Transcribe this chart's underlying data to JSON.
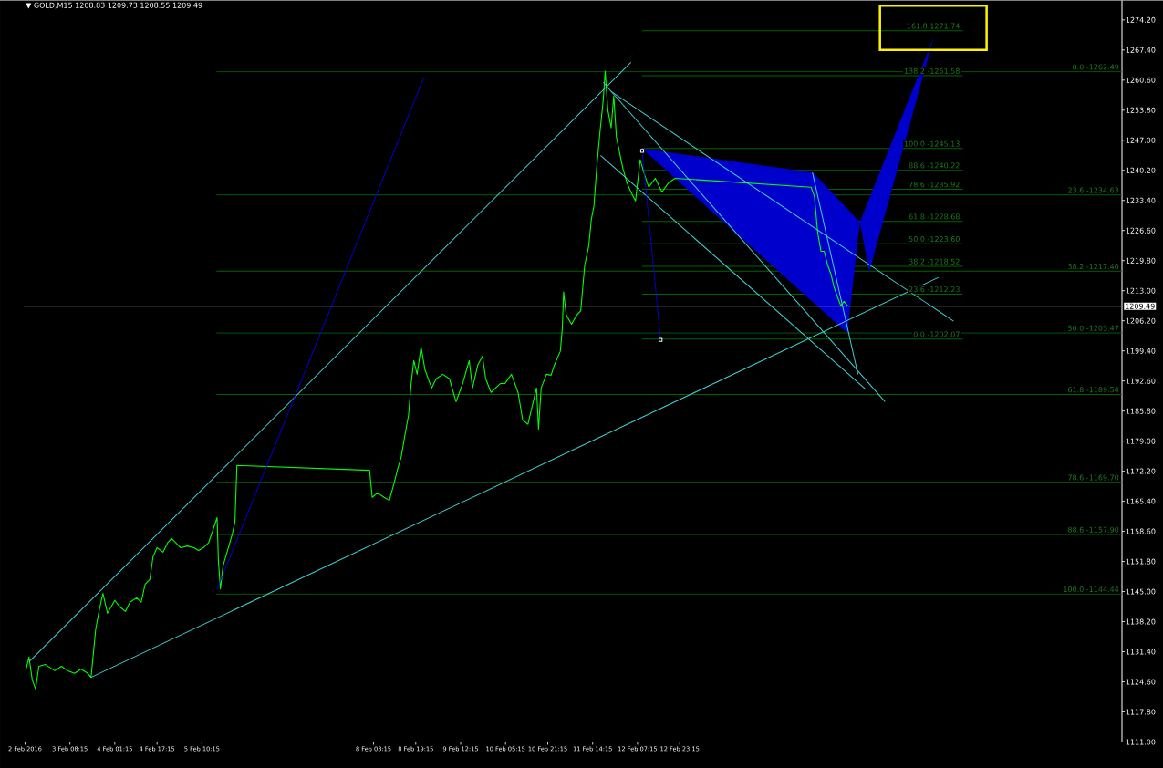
{
  "chart_data": {
    "type": "line",
    "title": "▼ GOLD,M15  1208.83 1209.73 1208.55 1209.49",
    "xlim": [
      "2016-02-02T14:45",
      "2016-02-19T22:45"
    ],
    "xticks": [
      {
        "value": "2016-02-02T15:15",
        "label": "2 Feb 2016"
      },
      {
        "value": "2016-02-03T08:15",
        "label": "3 Feb 08:15"
      },
      {
        "value": "2016-02-04T01:15",
        "label": "4 Feb 01:15"
      },
      {
        "value": "2016-02-04T17:15",
        "label": "4 Feb 17:15"
      },
      {
        "value": "2016-02-05T10:15",
        "label": "5 Feb 10:15"
      },
      {
        "value": "2016-02-08T03:15",
        "label": "8 Feb 03:15"
      },
      {
        "value": "2016-02-08T19:15",
        "label": "8 Feb 19:15"
      },
      {
        "value": "2016-02-09T12:15",
        "label": "9 Feb 12:15"
      },
      {
        "value": "2016-02-10T05:15",
        "label": "10 Feb 05:15"
      },
      {
        "value": "2016-02-10T21:15",
        "label": "10 Feb 21:15"
      },
      {
        "value": "2016-02-11T14:15",
        "label": "11 Feb 14:15"
      },
      {
        "value": "2016-02-12T07:15",
        "label": "12 Feb 07:15"
      },
      {
        "value": "2016-02-12T23:15",
        "label": "12 Feb 23:15"
      }
    ],
    "ylim": [
      1111,
      1278.6
    ],
    "yticks": [
      {
        "value": 1111.0,
        "label": "1111.00"
      },
      {
        "value": 1117.8,
        "label": "1117.80"
      },
      {
        "value": 1124.6,
        "label": "1124.60"
      },
      {
        "value": 1131.4,
        "label": "1131.40"
      },
      {
        "value": 1138.2,
        "label": "1138.20"
      },
      {
        "value": 1145.0,
        "label": "1145.00"
      },
      {
        "value": 1151.8,
        "label": "1151.80"
      },
      {
        "value": 1158.6,
        "label": "1158.60"
      },
      {
        "value": 1165.4,
        "label": "1165.40"
      },
      {
        "value": 1172.2,
        "label": "1172.20"
      },
      {
        "value": 1179.0,
        "label": "1179.00"
      },
      {
        "value": 1185.8,
        "label": "1185.80"
      },
      {
        "value": 1192.6,
        "label": "1192.60"
      },
      {
        "value": 1199.4,
        "label": "1199.40"
      },
      {
        "value": 1206.2,
        "label": "1206.20"
      },
      {
        "value": 1213.0,
        "label": "1213.00"
      },
      {
        "value": 1219.8,
        "label": "1219.80"
      },
      {
        "value": 1226.6,
        "label": "1226.60"
      },
      {
        "value": 1233.4,
        "label": "1233.40"
      },
      {
        "value": 1240.2,
        "label": "1240.20"
      },
      {
        "value": 1247.0,
        "label": "1247.00"
      },
      {
        "value": 1253.8,
        "label": "1253.80"
      },
      {
        "value": 1260.6,
        "label": "1260.60"
      },
      {
        "value": 1267.4,
        "label": "1267.40"
      },
      {
        "value": 1274.2,
        "label": "1274.20"
      }
    ],
    "series": [
      {
        "name": "0.0 -1262.49",
        "color": "#006400",
        "x": [
          "2016-02-05T15:45",
          "2016-02-19T22:45"
        ],
        "values": [
          1262.49,
          1262.49
        ]
      },
      {
        "name": "23.6 -1234.63",
        "color": "#006400",
        "x": [
          "2016-02-05T15:45",
          "2016-02-19T22:45"
        ],
        "values": [
          1234.63,
          1234.63
        ]
      },
      {
        "name": "38.2 -1217.40",
        "color": "#006400",
        "x": [
          "2016-02-05T15:45",
          "2016-02-19T22:45"
        ],
        "values": [
          1217.4,
          1217.4
        ]
      },
      {
        "name": "50.0 -1203.47",
        "color": "#006400",
        "x": [
          "2016-02-05T15:45",
          "2016-02-19T22:45"
        ],
        "values": [
          1203.47,
          1203.47
        ]
      },
      {
        "name": "61.8 -1189.54",
        "color": "#006400",
        "x": [
          "2016-02-05T15:45",
          "2016-02-19T22:45"
        ],
        "values": [
          1189.54,
          1189.54
        ]
      },
      {
        "name": "78.6 -1169.70",
        "color": "#006400",
        "x": [
          "2016-02-05T15:45",
          "2016-02-19T22:45"
        ],
        "values": [
          1169.7,
          1169.7
        ]
      },
      {
        "name": "88.6 -1157.90",
        "color": "#006400",
        "x": [
          "2016-02-05T15:45",
          "2016-02-19T22:45"
        ],
        "values": [
          1157.9,
          1157.9
        ]
      },
      {
        "name": "100.0 -1144.44",
        "color": "#006400",
        "x": [
          "2016-02-05T15:45",
          "2016-02-19T22:45"
        ],
        "values": [
          1144.44,
          1144.44
        ]
      },
      {
        "name": "161.8 1271.74",
        "color": "#006400",
        "x": [
          "2016-02-12T09:00",
          "2016-02-17T10:30"
        ],
        "values": [
          1271.74,
          1271.74
        ]
      },
      {
        "name": "138.2 -1261.58",
        "color": "#006400",
        "x": [
          "2016-02-12T09:00",
          "2016-02-17T10:30"
        ],
        "values": [
          1261.58,
          1261.58
        ]
      },
      {
        "name": "100.0 -1245.13",
        "color": "#006400",
        "x": [
          "2016-02-12T09:00",
          "2016-02-17T10:30"
        ],
        "values": [
          1245.13,
          1245.13
        ]
      },
      {
        "name": "88.6 -1240.22",
        "color": "#006400",
        "x": [
          "2016-02-12T09:00",
          "2016-02-17T10:30"
        ],
        "values": [
          1240.22,
          1240.22
        ]
      },
      {
        "name": "78.6 -1235.92",
        "color": "#006400",
        "x": [
          "2016-02-12T09:00",
          "2016-02-17T10:30"
        ],
        "values": [
          1235.92,
          1235.92
        ]
      },
      {
        "name": "61.8 -1228.68",
        "color": "#006400",
        "x": [
          "2016-02-12T09:00",
          "2016-02-17T10:30"
        ],
        "values": [
          1228.68,
          1228.68
        ]
      },
      {
        "name": "50.0 -1223.60",
        "color": "#006400",
        "x": [
          "2016-02-12T09:00",
          "2016-02-17T10:30"
        ],
        "values": [
          1223.6,
          1223.6
        ]
      },
      {
        "name": "38.2 -1218.52",
        "color": "#006400",
        "x": [
          "2016-02-12T09:00",
          "2016-02-17T10:30"
        ],
        "values": [
          1218.52,
          1218.52
        ]
      },
      {
        "name": "23.6 -1212.23",
        "color": "#006400",
        "x": [
          "2016-02-12T09:00",
          "2016-02-17T10:30"
        ],
        "values": [
          1212.23,
          1212.23
        ]
      },
      {
        "name": "0.0 -1202.07",
        "color": "#006400",
        "x": [
          "2016-02-12T09:00",
          "2016-02-17T10:30"
        ],
        "values": [
          1202.07,
          1202.07
        ]
      },
      {
        "type": "area",
        "color": "#0000cc",
        "x": [
          "2016-02-12T09:00",
          "2016-02-15T01:45",
          "2016-02-15T19:30",
          "2016-02-15T14:45",
          "2016-02-12T09:00"
        ],
        "values": [
          1245.1,
          1239.7,
          1228.5,
          1203.4,
          1245.1
        ]
      },
      {
        "type": "area",
        "color": "#0000cc",
        "x": [
          "2016-02-15T19:30",
          "2016-02-16T23:30",
          "2016-02-15T23:00",
          "2016-02-15T19:30"
        ],
        "values": [
          1228.5,
          1270.4,
          1217.2,
          1228.5
        ]
      },
      {
        "color": "#00ff00",
        "x": [
          "2016-02-02T15:30",
          "2016-02-02T16:45",
          "2016-02-02T18:00",
          "2016-02-02T19:15",
          "2016-02-02T20:30",
          "2016-02-02T23:00",
          "2016-02-03T02:30",
          "2016-02-03T05:00",
          "2016-02-03T07:30",
          "2016-02-03T10:00",
          "2016-02-03T12:30",
          "2016-02-03T15:00",
          "2016-02-03T16:15",
          "2016-02-03T17:00",
          "2016-02-03T18:00",
          "2016-02-03T19:15",
          "2016-02-03T20:45",
          "2016-02-03T21:30",
          "2016-02-03T22:30",
          "2016-02-04T01:15",
          "2016-02-04T03:15",
          "2016-02-04T05:15",
          "2016-02-04T07:00",
          "2016-02-04T09:30",
          "2016-02-04T11:15",
          "2016-02-04T12:45",
          "2016-02-04T14:30",
          "2016-02-04T15:45",
          "2016-02-04T17:15",
          "2016-02-04T19:30",
          "2016-02-04T21:15",
          "2016-02-04T22:45",
          "2016-02-05T02:15",
          "2016-02-05T04:45",
          "2016-02-05T07:15",
          "2016-02-05T09:00",
          "2016-02-05T10:45",
          "2016-02-05T12:45",
          "2016-02-05T14:45",
          "2016-02-05T16:00",
          "2016-02-05T16:30",
          "2016-02-05T17:15",
          "2016-02-05T18:15",
          "2016-02-05T20:15",
          "2016-02-05T21:45",
          "2016-02-05T22:45",
          "2016-02-05T23:30",
          "2016-02-08T01:45",
          "2016-02-08T02:45",
          "2016-02-08T04:45",
          "2016-02-08T07:15",
          "2016-02-08T09:15",
          "2016-02-08T11:00",
          "2016-02-08T12:15",
          "2016-02-08T13:45",
          "2016-02-08T15:15",
          "2016-02-08T16:30",
          "2016-02-08T17:30",
          "2016-02-08T18:30",
          "2016-02-08T19:45",
          "2016-02-08T21:15",
          "2016-02-08T22:45",
          "2016-02-09T01:15",
          "2016-02-09T03:00",
          "2016-02-09T05:30",
          "2016-02-09T08:00",
          "2016-02-09T10:30",
          "2016-02-09T13:00",
          "2016-02-09T15:30",
          "2016-02-09T16:45",
          "2016-02-09T18:45",
          "2016-02-09T20:30",
          "2016-02-09T21:45",
          "2016-02-09T23:45",
          "2016-02-10T03:15",
          "2016-02-10T05:00",
          "2016-02-10T07:30",
          "2016-02-10T10:00",
          "2016-02-10T11:45",
          "2016-02-10T13:45",
          "2016-02-10T15:45",
          "2016-02-10T17:00",
          "2016-02-10T17:45",
          "2016-02-10T18:45",
          "2016-02-10T20:45",
          "2016-02-10T22:30",
          "2016-02-10T23:45",
          "2016-02-11T02:00",
          "2016-02-11T02:45",
          "2016-02-11T03:15",
          "2016-02-11T04:15",
          "2016-02-11T06:15",
          "2016-02-11T08:15",
          "2016-02-11T09:45",
          "2016-02-11T11:15",
          "2016-02-11T12:45",
          "2016-02-11T13:45",
          "2016-02-11T14:45",
          "2016-02-11T15:45",
          "2016-02-11T17:00",
          "2016-02-11T18:15",
          "2016-02-11T19:00",
          "2016-02-11T20:00",
          "2016-02-11T21:15",
          "2016-02-11T22:15",
          "2016-02-11T23:15",
          "2016-02-12T01:45",
          "2016-02-12T03:15",
          "2016-02-12T04:45",
          "2016-02-12T06:30",
          "2016-02-12T08:15",
          "2016-02-12T09:45",
          "2016-02-12T11:30",
          "2016-02-12T14:00",
          "2016-02-12T16:30",
          "2016-02-12T19:00",
          "2016-02-12T21:30",
          "2016-02-15T01:00",
          "2016-02-15T02:15",
          "2016-02-15T03:30",
          "2016-02-15T04:45",
          "2016-02-15T06:00",
          "2016-02-15T07:15",
          "2016-02-15T08:30",
          "2016-02-15T09:45",
          "2016-02-15T11:00",
          "2016-02-15T12:15",
          "2016-02-15T13:30",
          "2016-02-15T14:45"
        ],
        "values": [
          1127.1,
          1130.2,
          1125.0,
          1123.0,
          1128.1,
          1128.5,
          1127.1,
          1128.1,
          1127.1,
          1126.5,
          1127.5,
          1126.5,
          1125.6,
          1130.2,
          1136.4,
          1140.5,
          1144.6,
          1142.6,
          1140.1,
          1143.0,
          1141.5,
          1140.5,
          1142.6,
          1143.6,
          1142.6,
          1146.7,
          1147.7,
          1152.9,
          1154.9,
          1153.9,
          1156.0,
          1157.0,
          1154.9,
          1155.3,
          1154.9,
          1154.3,
          1154.9,
          1156.0,
          1159.5,
          1161.7,
          1151.8,
          1145.6,
          1150.8,
          1154.9,
          1158.0,
          1160.7,
          1173.5,
          1172.4,
          1166.3,
          1167.3,
          1166.3,
          1165.6,
          1169.4,
          1172.4,
          1175.5,
          1180.7,
          1184.8,
          1192.0,
          1197.2,
          1194.1,
          1200.3,
          1195.1,
          1191.0,
          1193.1,
          1194.1,
          1193.1,
          1187.9,
          1192.0,
          1197.2,
          1191.0,
          1196.2,
          1198.2,
          1193.1,
          1190.0,
          1192.0,
          1192.0,
          1194.1,
          1190.0,
          1183.8,
          1182.8,
          1187.9,
          1191.0,
          1181.7,
          1191.0,
          1194.1,
          1193.9,
          1196.2,
          1199.3,
          1204.4,
          1212.7,
          1207.5,
          1205.4,
          1207.5,
          1208.5,
          1218.8,
          1223.0,
          1229.1,
          1232.2,
          1240.5,
          1248.7,
          1256.0,
          1262.6,
          1253.9,
          1249.8,
          1257.0,
          1247.7,
          1240.5,
          1237.4,
          1235.3,
          1233.3,
          1242.6,
          1239.5,
          1236.4,
          1238.4,
          1235.3,
          1237.4,
          1238.4,
          1236.4,
          1234.3,
          1226.1,
          1221.9,
          1221.9,
          1218.8,
          1216.8,
          1213.7,
          1211.6,
          1209.6,
          1210.6,
          1209.6
        ]
      },
      {
        "color": "#40d0d0",
        "x": [
          "2016-02-02T16:45",
          "2016-02-12T04:45"
        ],
        "values": [
          1129.1,
          1264.6
        ]
      },
      {
        "color": "#40d0d0",
        "x": [
          "2016-02-03T16:15",
          "2016-02-17T01:15"
        ],
        "values": [
          1125.6,
          1216.0
        ]
      },
      {
        "color": "#40d0d0",
        "x": [
          "2016-02-11T18:15",
          "2016-02-16T05:00"
        ],
        "values": [
          1260.1,
          1187.9
        ]
      },
      {
        "color": "#40d0d0",
        "x": [
          "2016-02-11T17:15",
          "2016-02-15T21:30"
        ],
        "values": [
          1243.6,
          1190.8
        ]
      },
      {
        "color": "#40d0d0",
        "x": [
          "2016-02-11T21:15",
          "2016-02-17T07:00"
        ],
        "values": [
          1258.0,
          1206.1
        ]
      },
      {
        "color": "#40d0d0",
        "x": [
          "2016-02-15T01:30",
          "2016-02-15T18:45"
        ],
        "values": [
          1239.7,
          1194.1
        ]
      },
      {
        "color": "#0000ff",
        "line_style": "dotted",
        "x": [
          "2016-02-05T16:00",
          "2016-02-08T22:15"
        ],
        "values": [
          1145.6,
          1261.1
        ]
      },
      {
        "color": "#0000ff",
        "line_style": "dotted",
        "marker": "square",
        "x": [
          "2016-02-12T09:00",
          "2016-02-12T16:00"
        ],
        "values": [
          1244.6,
          1201.9
        ]
      }
    ],
    "ref_lines": [
      {
        "axis": "y",
        "value": 1209.49,
        "label": "1209.49",
        "color": "#c0c0c0"
      }
    ]
  }
}
